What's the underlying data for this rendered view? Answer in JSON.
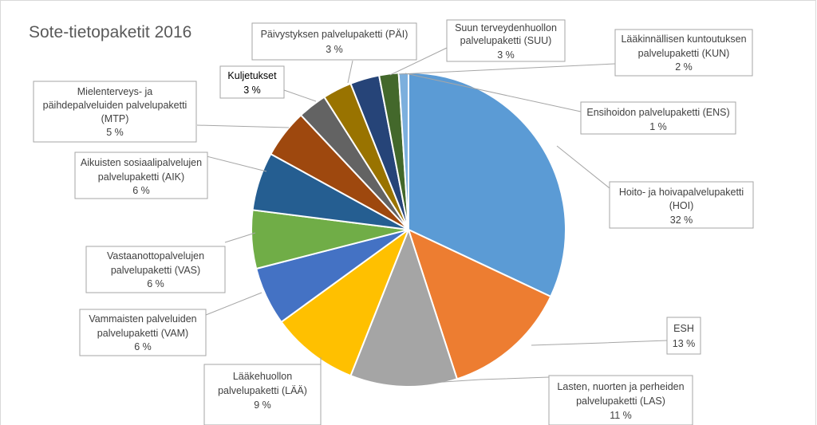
{
  "chart_data": {
    "type": "pie",
    "title": "Sote-tietopaketit 2016",
    "slices": [
      {
        "label": "Hoito- ja hoivapalvelupaketti (HOI)",
        "pct_text": "32 %",
        "value": 32,
        "color": "#5B9BD5"
      },
      {
        "label": "ESH",
        "pct_text": "13 %",
        "value": 13,
        "color": "#ED7D31"
      },
      {
        "label": "Lasten, nuorten ja perheiden palvelupaketti (LAS)",
        "pct_text": "11 %",
        "value": 11,
        "color": "#A5A5A5"
      },
      {
        "label": "Lääkehuollon palvelupaketti (LÄÄ)",
        "pct_text": "9 %",
        "value": 9,
        "color": "#FFC000"
      },
      {
        "label": "Vammaisten palveluiden palvelupaketti (VAM)",
        "pct_text": "6 %",
        "value": 6,
        "color": "#4472C4"
      },
      {
        "label": "Vastaanottopalvelujen palvelupaketti (VAS)",
        "pct_text": "6 %",
        "value": 6,
        "color": "#70AD47"
      },
      {
        "label": "Aikuisten sosiaalipalvelujen palvelupaketti (AIK)",
        "pct_text": "6 %",
        "value": 6,
        "color": "#255E91"
      },
      {
        "label": "Mielenterveys- ja päihdepalveluiden palvelupaketti (MTP)",
        "pct_text": "5 %",
        "value": 5,
        "color": "#9E480E"
      },
      {
        "label": "Kuljetukset",
        "pct_text": "3 %",
        "value": 3,
        "color": "#636363"
      },
      {
        "label": "Päivystyksen palvelupaketti (PÄI)",
        "pct_text": "3 %",
        "value": 3,
        "color": "#997300"
      },
      {
        "label": "Suun terveydenhuollon palvelupaketti (SUU)",
        "pct_text": "3 %",
        "value": 3,
        "color": "#264478"
      },
      {
        "label": "Lääkinnällisen kuntoutuksen palvelupaketti (KUN)",
        "pct_text": "2 %",
        "value": 2,
        "color": "#43682B"
      },
      {
        "label": "Ensihoidon palvelupaketti (ENS)",
        "pct_text": "1 %",
        "value": 1,
        "color": "#7CAFDD"
      }
    ]
  },
  "labels": {
    "hoi": {
      "line1": "Hoito- ja hoivapalvelupaketti",
      "line2": "(HOI)",
      "pct": "32 %"
    },
    "esh": {
      "line1": "ESH",
      "pct": "13 %"
    },
    "las": {
      "line1": "Lasten, nuorten ja perheiden",
      "line2": "palvelupaketti (LAS)",
      "pct": "11 %"
    },
    "laa": {
      "line1": "Lääkehuollon",
      "line2": "palvelupaketti (LÄÄ)",
      "pct": "9 %"
    },
    "vam": {
      "line1": "Vammaisten palveluiden",
      "line2": "palvelupaketti (VAM)",
      "pct": "6 %"
    },
    "vas": {
      "line1": "Vastaanottopalvelujen",
      "line2": "palvelupaketti (VAS)",
      "pct": "6 %"
    },
    "aik": {
      "line1": "Aikuisten sosiaalipalvelujen",
      "line2": "palvelupaketti (AIK)",
      "pct": "6 %"
    },
    "mtp": {
      "line1": "Mielenterveys- ja",
      "line2": "päihdepalveluiden palvelupaketti",
      "line3": "(MTP)",
      "pct": "5 %"
    },
    "kul": {
      "line1": "Kuljetukset",
      "pct": "3 %"
    },
    "pai": {
      "line1": "Päivystyksen palvelupaketti (PÄI)",
      "pct": "3 %"
    },
    "suu": {
      "line1": "Suun terveydenhuollon",
      "line2": "palvelupaketti (SUU)",
      "pct": "3 %"
    },
    "kun": {
      "line1": "Lääkinnällisen kuntoutuksen",
      "line2": "palvelupaketti (KUN)",
      "pct": "2 %"
    },
    "ens": {
      "line1": "Ensihoidon palvelupaketti (ENS)",
      "pct": "1 %"
    }
  }
}
